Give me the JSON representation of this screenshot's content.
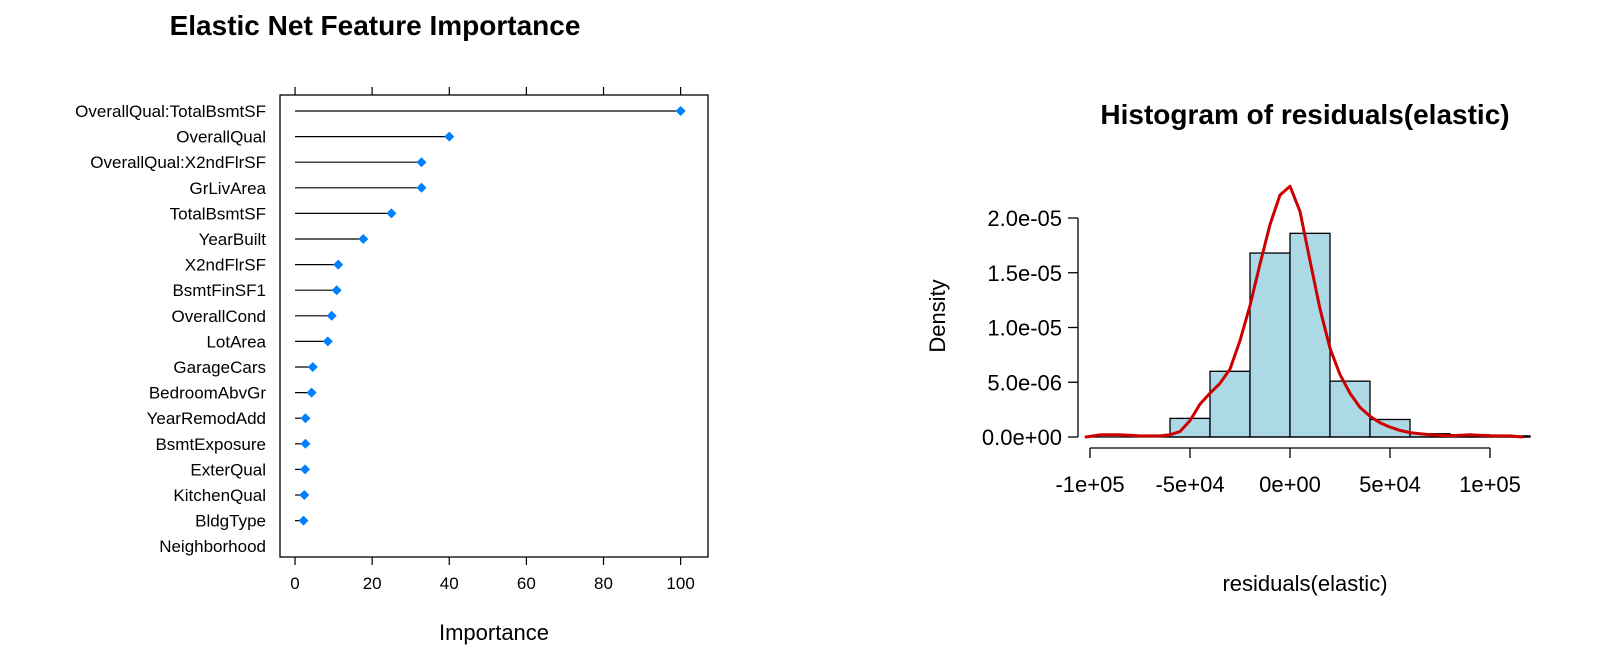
{
  "chart_data": [
    {
      "type": "lollipop",
      "title": "Elastic Net Feature Importance",
      "xlabel": "Importance",
      "ylabel": "",
      "xlim": [
        -3.9,
        107.1
      ],
      "xticks": [
        "0",
        "20",
        "40",
        "60",
        "80",
        "100"
      ],
      "xtick_values": [
        0,
        20,
        40,
        60,
        80,
        100
      ],
      "grid": false,
      "marker_color": "#0080ff",
      "categories": [
        "OverallQual:TotalBsmtSF",
        "OverallQual",
        "OverallQual:X2ndFlrSF",
        "GrLivArea",
        "TotalBsmtSF",
        "YearBuilt",
        "X2ndFlrSF",
        "BsmtFinSF1",
        "OverallCond",
        "LotArea",
        "GarageCars",
        "BedroomAbvGr",
        "YearRemodAdd",
        "BsmtExposure",
        "ExterQual",
        "KitchenQual",
        "BldgType",
        "Neighborhood"
      ],
      "values": [
        100,
        40,
        32.8,
        32.8,
        25,
        17.7,
        11.2,
        10.8,
        9.5,
        8.5,
        4.6,
        4.3,
        2.7,
        2.7,
        2.6,
        2.4,
        2.2,
        0
      ]
    },
    {
      "type": "histogram",
      "title": "Histogram of residuals(elastic)",
      "xlabel": "residuals(elastic)",
      "ylabel": "Density",
      "xticks": [
        "-1e+05",
        "-5e+04",
        "0e+00",
        "5e+04",
        "1e+05"
      ],
      "xtick_values": [
        -100000,
        -50000,
        0,
        50000,
        100000
      ],
      "yticks": [
        "0.0e+00",
        "5.0e-06",
        "1.0e-05",
        "1.5e-05",
        "2.0e-05"
      ],
      "ytick_values": [
        0,
        5e-06,
        1e-05,
        1.5e-05,
        2e-05
      ],
      "xlim": [
        -100000,
        120000
      ],
      "ylim": [
        0,
        2.3e-05
      ],
      "bar_color": "#add8e6",
      "curve_color": "#cc0000",
      "bins": [
        {
          "x0": -100000,
          "x1": -80000,
          "density": 0
        },
        {
          "x0": -80000,
          "x1": -60000,
          "density": 0
        },
        {
          "x0": -60000,
          "x1": -40000,
          "density": 1.7e-06
        },
        {
          "x0": -40000,
          "x1": -20000,
          "density": 6e-06
        },
        {
          "x0": -20000,
          "x1": 0,
          "density": 1.68e-05
        },
        {
          "x0": 0,
          "x1": 20000,
          "density": 1.86e-05
        },
        {
          "x0": 20000,
          "x1": 40000,
          "density": 5.1e-06
        },
        {
          "x0": 40000,
          "x1": 60000,
          "density": 1.6e-06
        },
        {
          "x0": 60000,
          "x1": 80000,
          "density": 3e-07
        },
        {
          "x0": 80000,
          "x1": 100000,
          "density": 2e-07
        },
        {
          "x0": 100000,
          "x1": 120000,
          "density": 1e-07
        }
      ],
      "density_curve": {
        "x": [
          -102000,
          -95000,
          -85000,
          -75000,
          -65000,
          -60000,
          -55000,
          -50000,
          -45000,
          -40000,
          -35000,
          -30000,
          -25000,
          -20000,
          -15000,
          -10000,
          -5000,
          0,
          5000,
          10000,
          15000,
          20000,
          25000,
          30000,
          35000,
          40000,
          45000,
          50000,
          55000,
          60000,
          65000,
          70000,
          80000,
          90000,
          100000,
          110000,
          116000
        ],
        "y": [
          0,
          2e-07,
          2e-07,
          1e-07,
          1e-07,
          2e-07,
          5e-07,
          1.5e-06,
          3e-06,
          4e-06,
          4.9e-06,
          6.2e-06,
          8.8e-06,
          1.2e-05,
          1.58e-05,
          1.94e-05,
          2.21e-05,
          2.29e-05,
          2.06e-05,
          1.61e-05,
          1.17e-05,
          8.1e-06,
          5.7e-06,
          4e-06,
          2.7e-06,
          1.9e-06,
          1.3e-06,
          9e-07,
          6e-07,
          4e-07,
          3e-07,
          2e-07,
          1e-07,
          2e-07,
          1e-07,
          1e-07,
          0
        ]
      }
    }
  ]
}
